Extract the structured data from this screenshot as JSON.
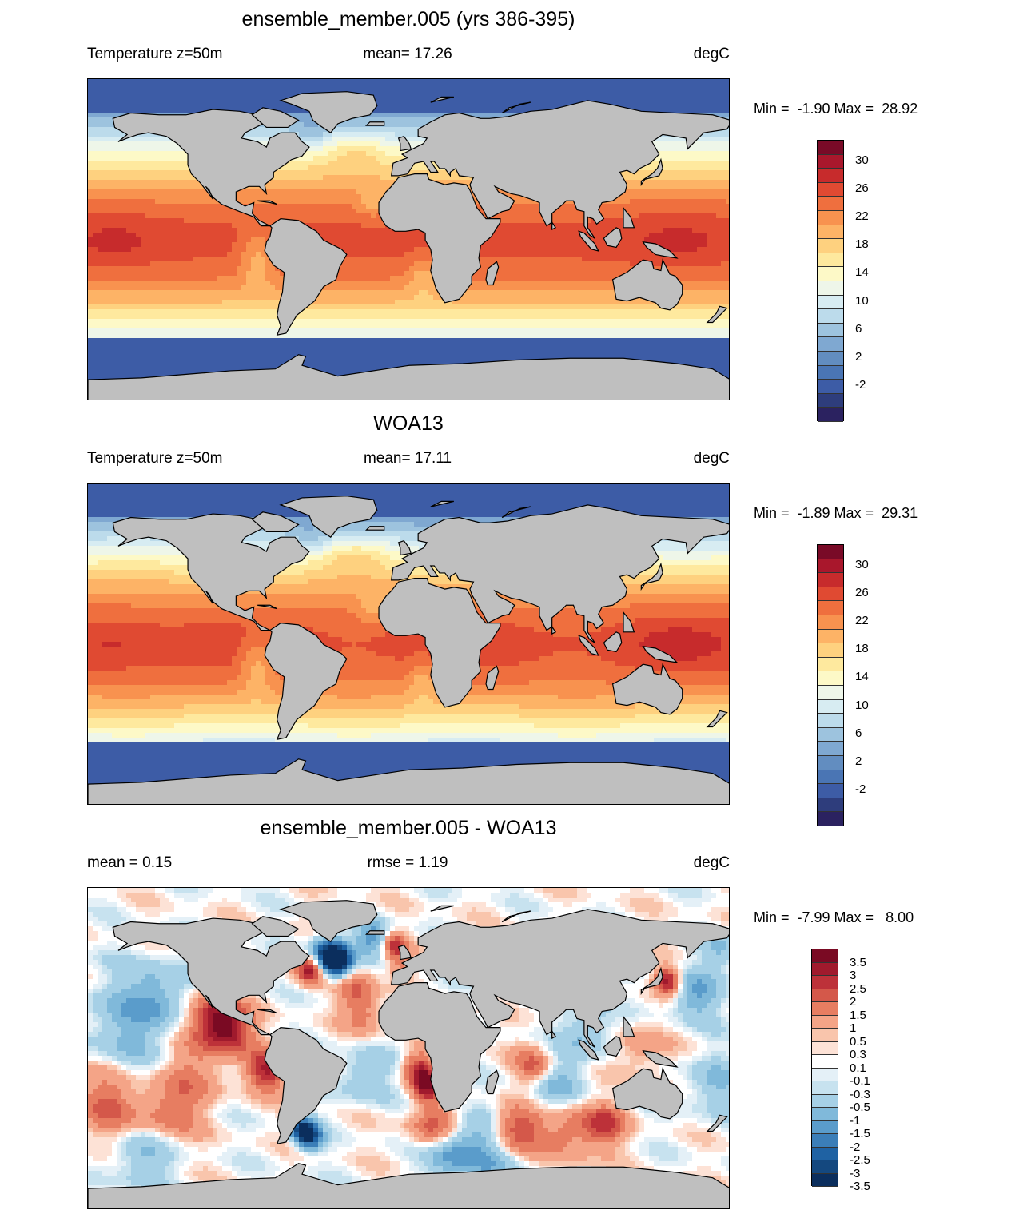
{
  "colors": {
    "land": "#bfbfbf",
    "coast": "#000000",
    "temp_scale": [
      "#2b2260",
      "#2e3d7c",
      "#3d5ca6",
      "#4a75b4",
      "#628dc0",
      "#7fa8d1",
      "#9dc3de",
      "#bcdbeb",
      "#d7ecf2",
      "#eef6e9",
      "#fdf9c7",
      "#fee99e",
      "#fed17f",
      "#fdb366",
      "#f8924f",
      "#ef6f3e",
      "#e04a32",
      "#c72b2c",
      "#a9172c",
      "#790a27"
    ],
    "diff_scale": [
      "#0b2e5d",
      "#14487f",
      "#1f62a3",
      "#3b7eb8",
      "#5a9ccb",
      "#80b9da",
      "#a6d0e6",
      "#c7e2ef",
      "#e4f0f7",
      "#ffffff",
      "#fde2d6",
      "#f9c5ac",
      "#f4a487",
      "#e77d61",
      "#d4584a",
      "#bd3139",
      "#a01a2d",
      "#7a0a23"
    ]
  },
  "panels": [
    {
      "title": "ensemble_member.005 (yrs 386-395)",
      "left_label": "Temperature z=50m",
      "center_label": "mean=  17.26",
      "right_label": "degC",
      "minmax": "Min =  -1.90 Max =  28.92",
      "variable": "temperature",
      "colorbar_ticks": [
        "30",
        "26",
        "22",
        "18",
        "14",
        "10",
        "6",
        "2",
        "-2"
      ],
      "min": -1.9,
      "max": 28.92,
      "mean": 17.26
    },
    {
      "title": "WOA13",
      "left_label": "Temperature z=50m",
      "center_label": "mean=  17.11",
      "right_label": "degC",
      "minmax": "Min =  -1.89 Max =  29.31",
      "variable": "temperature",
      "colorbar_ticks": [
        "30",
        "26",
        "22",
        "18",
        "14",
        "10",
        "6",
        "2",
        "-2"
      ],
      "min": -1.89,
      "max": 29.31,
      "mean": 17.11
    },
    {
      "title": "ensemble_member.005 - WOA13",
      "left_label": "mean =   0.15",
      "center_label": "rmse =   1.19",
      "right_label": "degC",
      "minmax": "Min =  -7.99 Max =   8.00",
      "variable": "difference",
      "colorbar_ticks": [
        "3.5",
        "3",
        "2.5",
        "2",
        "1.5",
        "1",
        "0.5",
        "0.3",
        "0.1",
        "-0.1",
        "-0.3",
        "-0.5",
        "-1",
        "-1.5",
        "-2",
        "-2.5",
        "-3",
        "-3.5"
      ],
      "min": -7.99,
      "max": 8.0,
      "mean": 0.15,
      "rmse": 1.19
    }
  ]
}
